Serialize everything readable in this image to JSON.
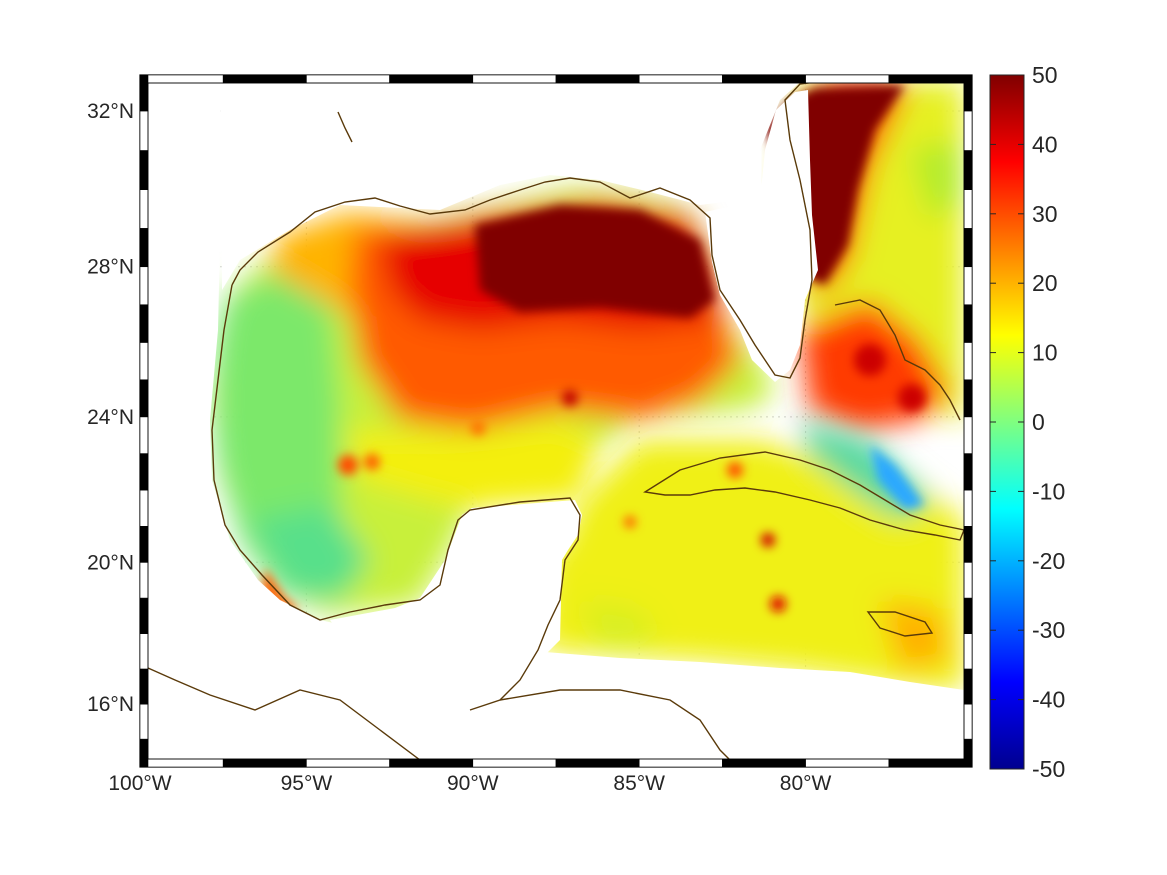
{
  "map": {
    "projection": "mercator",
    "lon_range": [
      -100,
      -75
    ],
    "lat_range": [
      14.2,
      32.9
    ],
    "grid": true,
    "lon_ticks": [
      {
        "value": -100,
        "label": "100°W"
      },
      {
        "value": -95,
        "label": "95°W"
      },
      {
        "value": -90,
        "label": "90°W"
      },
      {
        "value": -85,
        "label": "85°W"
      },
      {
        "value": -80,
        "label": "80°W"
      }
    ],
    "lat_ticks": [
      {
        "value": 32,
        "label": "32°N"
      },
      {
        "value": 28,
        "label": "28°N"
      },
      {
        "value": 24,
        "label": "24°N"
      },
      {
        "value": 20,
        "label": "20°N"
      },
      {
        "value": 16,
        "label": "16°N"
      }
    ],
    "coastline_color": "#5a3a0a",
    "frame_colors": [
      "#000000",
      "#ffffff"
    ]
  },
  "colorbar": {
    "colormap": "jet",
    "range": [
      -50,
      50
    ],
    "ticks": [
      {
        "value": 50,
        "label": "50"
      },
      {
        "value": 40,
        "label": "40"
      },
      {
        "value": 30,
        "label": "30"
      },
      {
        "value": 20,
        "label": "20"
      },
      {
        "value": 10,
        "label": "10"
      },
      {
        "value": 0,
        "label": "0"
      },
      {
        "value": -10,
        "label": "-10"
      },
      {
        "value": -20,
        "label": "-20"
      },
      {
        "value": -30,
        "label": "-30"
      },
      {
        "value": -40,
        "label": "-40"
      },
      {
        "value": -50,
        "label": "-50"
      }
    ],
    "stops": [
      "#00008f",
      "#0000ff",
      "#00ffff",
      "#ffff00",
      "#ff0000",
      "#800000"
    ]
  }
}
